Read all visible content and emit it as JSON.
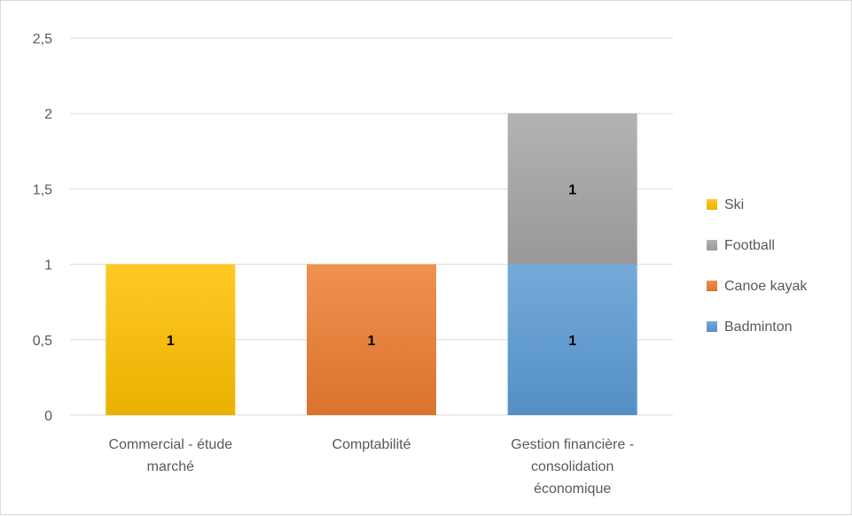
{
  "chart_data": {
    "type": "bar",
    "stacked": true,
    "categories": [
      [
        "Commercial - étude",
        "marché"
      ],
      [
        "Comptabilité"
      ],
      [
        "Gestion financière -",
        "consolidation",
        "économique"
      ]
    ],
    "series": [
      {
        "name": "Badminton",
        "color": "#5B9BD5",
        "values": [
          0,
          0,
          1
        ]
      },
      {
        "name": "Canoe kayak",
        "color": "#ED7D31",
        "values": [
          0,
          1,
          0
        ]
      },
      {
        "name": "Football",
        "color": "#A5A5A5",
        "values": [
          0,
          0,
          1
        ]
      },
      {
        "name": "Ski",
        "color": "#FFC000",
        "values": [
          1,
          0,
          0
        ]
      }
    ],
    "y_ticks": [
      "0",
      "0,5",
      "1",
      "1,5",
      "2",
      "2,5"
    ],
    "ylim": [
      0,
      2.5
    ],
    "grid": true,
    "legend_position": "right",
    "legend_order": [
      "Ski",
      "Football",
      "Canoe kayak",
      "Badminton"
    ],
    "title": "",
    "xlabel": "",
    "ylabel": ""
  }
}
